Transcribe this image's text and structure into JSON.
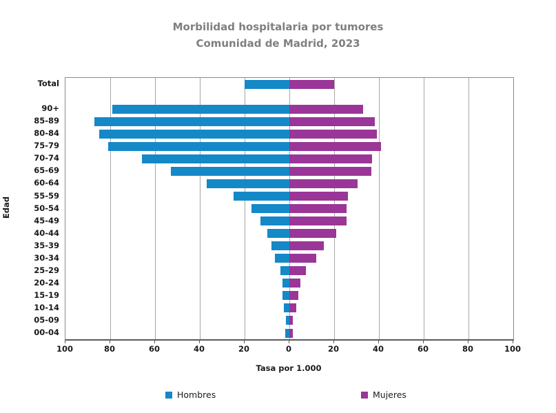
{
  "title": {
    "line1": "Morbilidad hospitalaria por tumores",
    "line2": "Comunidad de Madrid, 2023"
  },
  "colors": {
    "hombres": "#1588c8",
    "mujeres": "#9a3697",
    "title_gray": "#7f7f7f",
    "gridline": "#a6a6a6",
    "axis_line": "#595959"
  },
  "chart_data": {
    "type": "bar",
    "subtype": "population-pyramid",
    "title": "Morbilidad hospitalaria por tumores",
    "subtitle": "Comunidad de Madrid, 2023",
    "xlabel": "Tasa por 1.000",
    "ylabel": "Edad",
    "xlim": [
      -100,
      100
    ],
    "x_tick_step": 20,
    "x_ticks": [
      "100",
      "80",
      "60",
      "40",
      "20",
      "0",
      "20",
      "40",
      "60",
      "80",
      "100"
    ],
    "grid": true,
    "legend_position": "bottom",
    "categories": [
      "Total",
      "",
      "90+",
      "85-89",
      "80-84",
      "75-79",
      "70-74",
      "65-69",
      "60-64",
      "55-59",
      "50-54",
      "45-49",
      "40-44",
      "35-39",
      "30-34",
      "25-29",
      "20-24",
      "15-19",
      "10-14",
      "05-09",
      "00-04"
    ],
    "series": [
      {
        "name": "Hombres",
        "side": "left",
        "color": "#1588c8",
        "values": [
          20,
          null,
          79,
          87,
          85,
          81,
          66,
          53,
          37,
          25,
          17,
          13,
          10,
          8,
          6.5,
          4,
          3,
          3,
          2.5,
          1.5,
          2
        ]
      },
      {
        "name": "Mujeres",
        "side": "right",
        "color": "#9a3697",
        "values": [
          20,
          null,
          33,
          38,
          39,
          41,
          37,
          36.5,
          30.5,
          26,
          25.5,
          25.5,
          21,
          15.5,
          12,
          7.5,
          5,
          4,
          3,
          1.5,
          1.5
        ]
      }
    ]
  }
}
